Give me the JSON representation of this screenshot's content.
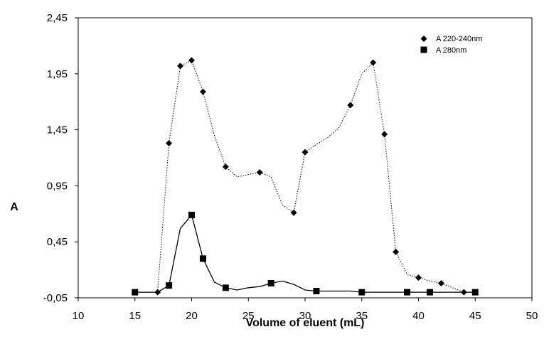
{
  "chart_data": {
    "type": "line",
    "title": "",
    "xlabel": "Volume of eluent (mL)",
    "ylabel": "A",
    "xlim": [
      10,
      50
    ],
    "ylim": [
      -0.05,
      2.45
    ],
    "xticks": [
      10,
      15,
      20,
      25,
      30,
      35,
      40,
      45,
      50
    ],
    "yticks": [
      "-0,05",
      "0,45",
      "0,95",
      "1,45",
      "1,95",
      "2,45"
    ],
    "ytick_values": [
      -0.05,
      0.45,
      0.95,
      1.45,
      1.95,
      2.45
    ],
    "grid": false,
    "legend_position": "top-right",
    "series": [
      {
        "name": "A 220-240nm",
        "color": "#000000",
        "line_style": "dotted",
        "marker": "diamond",
        "x": [
          15,
          17,
          18,
          19,
          20,
          21,
          22,
          23,
          24,
          25,
          26,
          27,
          28,
          29,
          30,
          31,
          32,
          33,
          34,
          35,
          36,
          37,
          38,
          39,
          40,
          41,
          42,
          43,
          44,
          45
        ],
        "y": [
          0.0,
          0.0,
          1.33,
          2.02,
          2.07,
          1.79,
          1.4,
          1.12,
          1.03,
          1.05,
          1.07,
          1.03,
          0.78,
          0.71,
          1.25,
          1.32,
          1.38,
          1.47,
          1.67,
          1.95,
          2.05,
          1.41,
          0.36,
          0.16,
          0.13,
          0.1,
          0.08,
          0.04,
          0.0,
          0.0
        ],
        "marked": [
          true,
          true,
          true,
          true,
          true,
          true,
          false,
          true,
          false,
          false,
          true,
          false,
          false,
          true,
          true,
          false,
          false,
          false,
          true,
          false,
          true,
          true,
          true,
          false,
          true,
          false,
          true,
          false,
          true,
          true
        ]
      },
      {
        "name": "A 280nm",
        "color": "#000000",
        "line_style": "solid",
        "marker": "square",
        "x": [
          15,
          17,
          18,
          19,
          20,
          21,
          22,
          23,
          24,
          25,
          26,
          27,
          28,
          29,
          30,
          31,
          32,
          33,
          34,
          35,
          36,
          37,
          38,
          39,
          40,
          41,
          42,
          43,
          44,
          45
        ],
        "y": [
          0.0,
          0.0,
          0.06,
          0.57,
          0.69,
          0.3,
          0.09,
          0.04,
          0.02,
          0.04,
          0.05,
          0.08,
          0.1,
          0.07,
          0.02,
          0.01,
          0.01,
          0.01,
          0.01,
          0.0,
          0.0,
          0.0,
          0.0,
          0.0,
          0.0,
          0.0,
          0.0,
          0.0,
          0.0,
          0.0
        ],
        "marked": [
          true,
          false,
          true,
          false,
          true,
          true,
          false,
          true,
          false,
          false,
          false,
          true,
          false,
          false,
          false,
          true,
          false,
          false,
          false,
          true,
          false,
          false,
          false,
          true,
          false,
          true,
          false,
          false,
          false,
          true
        ]
      }
    ]
  }
}
